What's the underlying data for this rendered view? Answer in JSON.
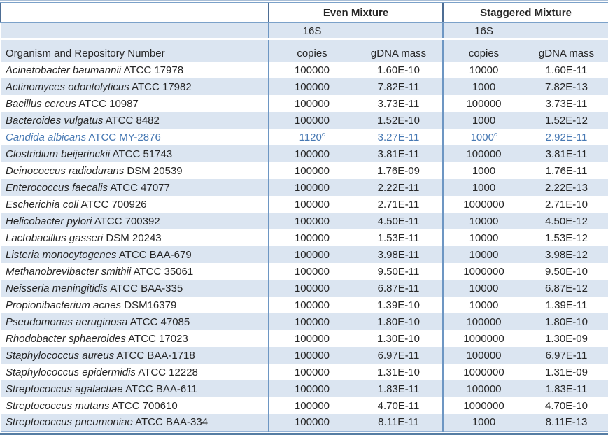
{
  "title_groups": {
    "even": "Even Mixture",
    "staggered": "Staggered Mixture"
  },
  "headers": {
    "organism": "Organism and Repository Number",
    "unit_16s": "16S",
    "copies": "copies",
    "gdna": "gDNA mass"
  },
  "colors": {
    "stripe": "#dbe5f1",
    "group_border": "#6d96c3",
    "header_rule": "#7ba1c9",
    "bottom_rule": "#567da3",
    "highlight_text": "#4678b3",
    "body_text": "#262626"
  },
  "rows": [
    {
      "genus_species": "Acinetobacter baumannii",
      "repository": "ATCC 17978",
      "even_copies": "100000",
      "even_copies_sup": "",
      "even_mass": "1.60E-10",
      "stag_copies": "10000",
      "stag_copies_sup": "",
      "stag_mass": "1.60E-11",
      "text_color": "default"
    },
    {
      "genus_species": "Actinomyces odontolyticus",
      "repository": "ATCC 17982",
      "even_copies": "100000",
      "even_copies_sup": "",
      "even_mass": "7.82E-11",
      "stag_copies": "1000",
      "stag_copies_sup": "",
      "stag_mass": "7.82E-13",
      "text_color": "default"
    },
    {
      "genus_species": "Bacillus cereus",
      "repository": "ATCC 10987",
      "even_copies": "100000",
      "even_copies_sup": "",
      "even_mass": "3.73E-11",
      "stag_copies": "100000",
      "stag_copies_sup": "",
      "stag_mass": "3.73E-11",
      "text_color": "default"
    },
    {
      "genus_species": "Bacteroides vulgatus",
      "repository": "ATCC 8482",
      "even_copies": "100000",
      "even_copies_sup": "",
      "even_mass": "1.52E-10",
      "stag_copies": "1000",
      "stag_copies_sup": "",
      "stag_mass": "1.52E-12",
      "text_color": "default"
    },
    {
      "genus_species": "Candida albicans",
      "repository": "ATCC MY-2876",
      "even_copies": "1120",
      "even_copies_sup": "c",
      "even_mass": "3.27E-11",
      "stag_copies": "1000",
      "stag_copies_sup": "c",
      "stag_mass": "2.92E-11",
      "text_color": "blue"
    },
    {
      "genus_species": "Clostridium beijerinckii",
      "repository": "ATCC 51743",
      "even_copies": "100000",
      "even_copies_sup": "",
      "even_mass": "3.81E-11",
      "stag_copies": "100000",
      "stag_copies_sup": "",
      "stag_mass": "3.81E-11",
      "text_color": "default"
    },
    {
      "genus_species": "Deinococcus radiodurans",
      "repository": "DSM 20539",
      "even_copies": "100000",
      "even_copies_sup": "",
      "even_mass": "1.76E-09",
      "stag_copies": "1000",
      "stag_copies_sup": "",
      "stag_mass": "1.76E-11",
      "text_color": "default"
    },
    {
      "genus_species": "Enterococcus faecalis",
      "repository": "ATCC 47077",
      "even_copies": "100000",
      "even_copies_sup": "",
      "even_mass": "2.22E-11",
      "stag_copies": "1000",
      "stag_copies_sup": "",
      "stag_mass": "2.22E-13",
      "text_color": "default"
    },
    {
      "genus_species": "Escherichia coli",
      "repository": "ATCC 700926",
      "even_copies": "100000",
      "even_copies_sup": "",
      "even_mass": "2.71E-11",
      "stag_copies": "1000000",
      "stag_copies_sup": "",
      "stag_mass": "2.71E-10",
      "text_color": "default"
    },
    {
      "genus_species": "Helicobacter pylori",
      "repository": "ATCC 700392",
      "even_copies": "100000",
      "even_copies_sup": "",
      "even_mass": "4.50E-11",
      "stag_copies": "10000",
      "stag_copies_sup": "",
      "stag_mass": "4.50E-12",
      "text_color": "default"
    },
    {
      "genus_species": "Lactobacillus gasseri",
      "repository": "DSM 20243",
      "even_copies": "100000",
      "even_copies_sup": "",
      "even_mass": "1.53E-11",
      "stag_copies": "10000",
      "stag_copies_sup": "",
      "stag_mass": "1.53E-12",
      "text_color": "default"
    },
    {
      "genus_species": "Listeria monocytogenes",
      "repository": "ATCC BAA-679",
      "even_copies": "100000",
      "even_copies_sup": "",
      "even_mass": "3.98E-11",
      "stag_copies": "10000",
      "stag_copies_sup": "",
      "stag_mass": "3.98E-12",
      "text_color": "default"
    },
    {
      "genus_species": "Methanobrevibacter smithii",
      "repository": "ATCC 35061",
      "even_copies": "100000",
      "even_copies_sup": "",
      "even_mass": "9.50E-11",
      "stag_copies": "1000000",
      "stag_copies_sup": "",
      "stag_mass": "9.50E-10",
      "text_color": "default"
    },
    {
      "genus_species": "Neisseria meningitidis",
      "repository": "ATCC BAA-335",
      "even_copies": "100000",
      "even_copies_sup": "",
      "even_mass": "6.87E-11",
      "stag_copies": "10000",
      "stag_copies_sup": "",
      "stag_mass": "6.87E-12",
      "text_color": "default"
    },
    {
      "genus_species": "Propionibacterium acnes",
      "repository": "DSM16379",
      "even_copies": "100000",
      "even_copies_sup": "",
      "even_mass": "1.39E-10",
      "stag_copies": "10000",
      "stag_copies_sup": "",
      "stag_mass": "1.39E-11",
      "text_color": "default"
    },
    {
      "genus_species": "Pseudomonas aeruginosa",
      "repository": "ATCC 47085",
      "even_copies": "100000",
      "even_copies_sup": "",
      "even_mass": "1.80E-10",
      "stag_copies": "100000",
      "stag_copies_sup": "",
      "stag_mass": "1.80E-10",
      "text_color": "default"
    },
    {
      "genus_species": "Rhodobacter sphaeroides",
      "repository": "ATCC 17023",
      "even_copies": "100000",
      "even_copies_sup": "",
      "even_mass": "1.30E-10",
      "stag_copies": "1000000",
      "stag_copies_sup": "",
      "stag_mass": "1.30E-09",
      "text_color": "default"
    },
    {
      "genus_species": "Staphylococcus aureus",
      "repository": "ATCC BAA-1718",
      "even_copies": "100000",
      "even_copies_sup": "",
      "even_mass": "6.97E-11",
      "stag_copies": "100000",
      "stag_copies_sup": "",
      "stag_mass": "6.97E-11",
      "text_color": "default"
    },
    {
      "genus_species": "Staphylococcus epidermidis",
      "repository": "ATCC 12228",
      "even_copies": "100000",
      "even_copies_sup": "",
      "even_mass": "1.31E-10",
      "stag_copies": "1000000",
      "stag_copies_sup": "",
      "stag_mass": "1.31E-09",
      "text_color": "default"
    },
    {
      "genus_species": "Streptococcus agalactiae",
      "repository": "ATCC BAA-611",
      "even_copies": "100000",
      "even_copies_sup": "",
      "even_mass": "1.83E-11",
      "stag_copies": "100000",
      "stag_copies_sup": "",
      "stag_mass": "1.83E-11",
      "text_color": "default"
    },
    {
      "genus_species": "Streptococcus mutans",
      "repository": "ATCC 700610",
      "even_copies": "100000",
      "even_copies_sup": "",
      "even_mass": "4.70E-11",
      "stag_copies": "1000000",
      "stag_copies_sup": "",
      "stag_mass": "4.70E-10",
      "text_color": "default"
    },
    {
      "genus_species": "Streptococcus pneumoniae",
      "repository": "ATCC BAA-334",
      "even_copies": "100000",
      "even_copies_sup": "",
      "even_mass": "8.11E-11",
      "stag_copies": "1000",
      "stag_copies_sup": "",
      "stag_mass": "8.11E-13",
      "text_color": "blue_shade_default"
    }
  ]
}
